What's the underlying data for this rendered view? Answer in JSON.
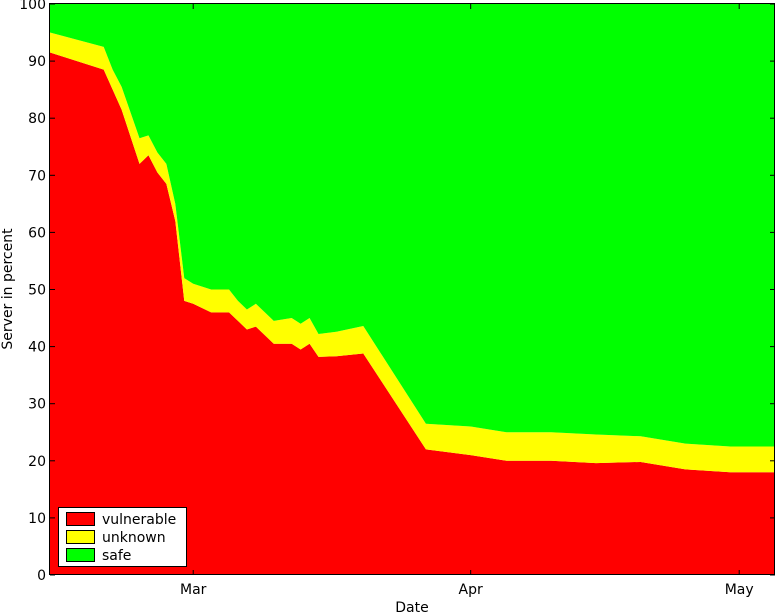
{
  "chart_data": {
    "type": "area",
    "stacked": true,
    "title": "",
    "xlabel": "Date",
    "ylabel": "Server in percent",
    "ylim": [
      0,
      100
    ],
    "xlim": [
      "2013-02-13",
      "2013-05-05"
    ],
    "yticks": [
      "0",
      "10",
      "20",
      "30",
      "40",
      "50",
      "60",
      "70",
      "80",
      "90",
      "100"
    ],
    "xticks": [
      {
        "label": "Mar",
        "date": "2013-03-01"
      },
      {
        "label": "Apr",
        "date": "2013-04-01"
      },
      {
        "label": "May",
        "date": "2013-05-01"
      }
    ],
    "grid": false,
    "legend_position": "bottom-left",
    "x": [
      "2013-02-13",
      "2013-02-19",
      "2013-02-20",
      "2013-02-21",
      "2013-02-23",
      "2013-02-24",
      "2013-02-25",
      "2013-02-26",
      "2013-02-27",
      "2013-02-28",
      "2013-03-01",
      "2013-03-03",
      "2013-03-05",
      "2013-03-06",
      "2013-03-07",
      "2013-03-08",
      "2013-03-10",
      "2013-03-12",
      "2013-03-13",
      "2013-03-14",
      "2013-03-15",
      "2013-03-17",
      "2013-03-20",
      "2013-03-27",
      "2013-04-01",
      "2013-04-05",
      "2013-04-10",
      "2013-04-15",
      "2013-04-20",
      "2013-04-25",
      "2013-04-30",
      "2013-05-05"
    ],
    "series": [
      {
        "name": "vulnerable",
        "color": "#ff0000",
        "values": [
          91.5,
          88.5,
          85,
          81.5,
          72,
          73.5,
          70.5,
          68.5,
          62,
          48,
          47.5,
          46,
          46,
          44.5,
          43,
          43.5,
          40.5,
          40.5,
          39.5,
          40.5,
          38.2,
          38.3,
          38.8,
          22,
          21,
          20,
          20,
          19.6,
          19.8,
          18.5,
          18,
          18
        ]
      },
      {
        "name": "unknown",
        "color": "#ffff00",
        "values": [
          3.5,
          4,
          3.5,
          4,
          4.5,
          3.5,
          3.5,
          3.5,
          3,
          4,
          3.5,
          4,
          4,
          3.5,
          3.5,
          4,
          4,
          4.5,
          4.5,
          4.5,
          4,
          4.3,
          4.8,
          4.5,
          5,
          5,
          5,
          5,
          4.5,
          4.5,
          4.5,
          4.5
        ]
      },
      {
        "name": "safe",
        "color": "#00ff00",
        "values": [
          5,
          7.5,
          11.5,
          14.5,
          23.5,
          23,
          26,
          28,
          35,
          48,
          49,
          50,
          50,
          52,
          53.5,
          52.5,
          55.5,
          55,
          56,
          55,
          57.8,
          57.4,
          56.4,
          73.5,
          74,
          75,
          75,
          75.4,
          75.7,
          77,
          77.5,
          77.5
        ]
      }
    ]
  }
}
